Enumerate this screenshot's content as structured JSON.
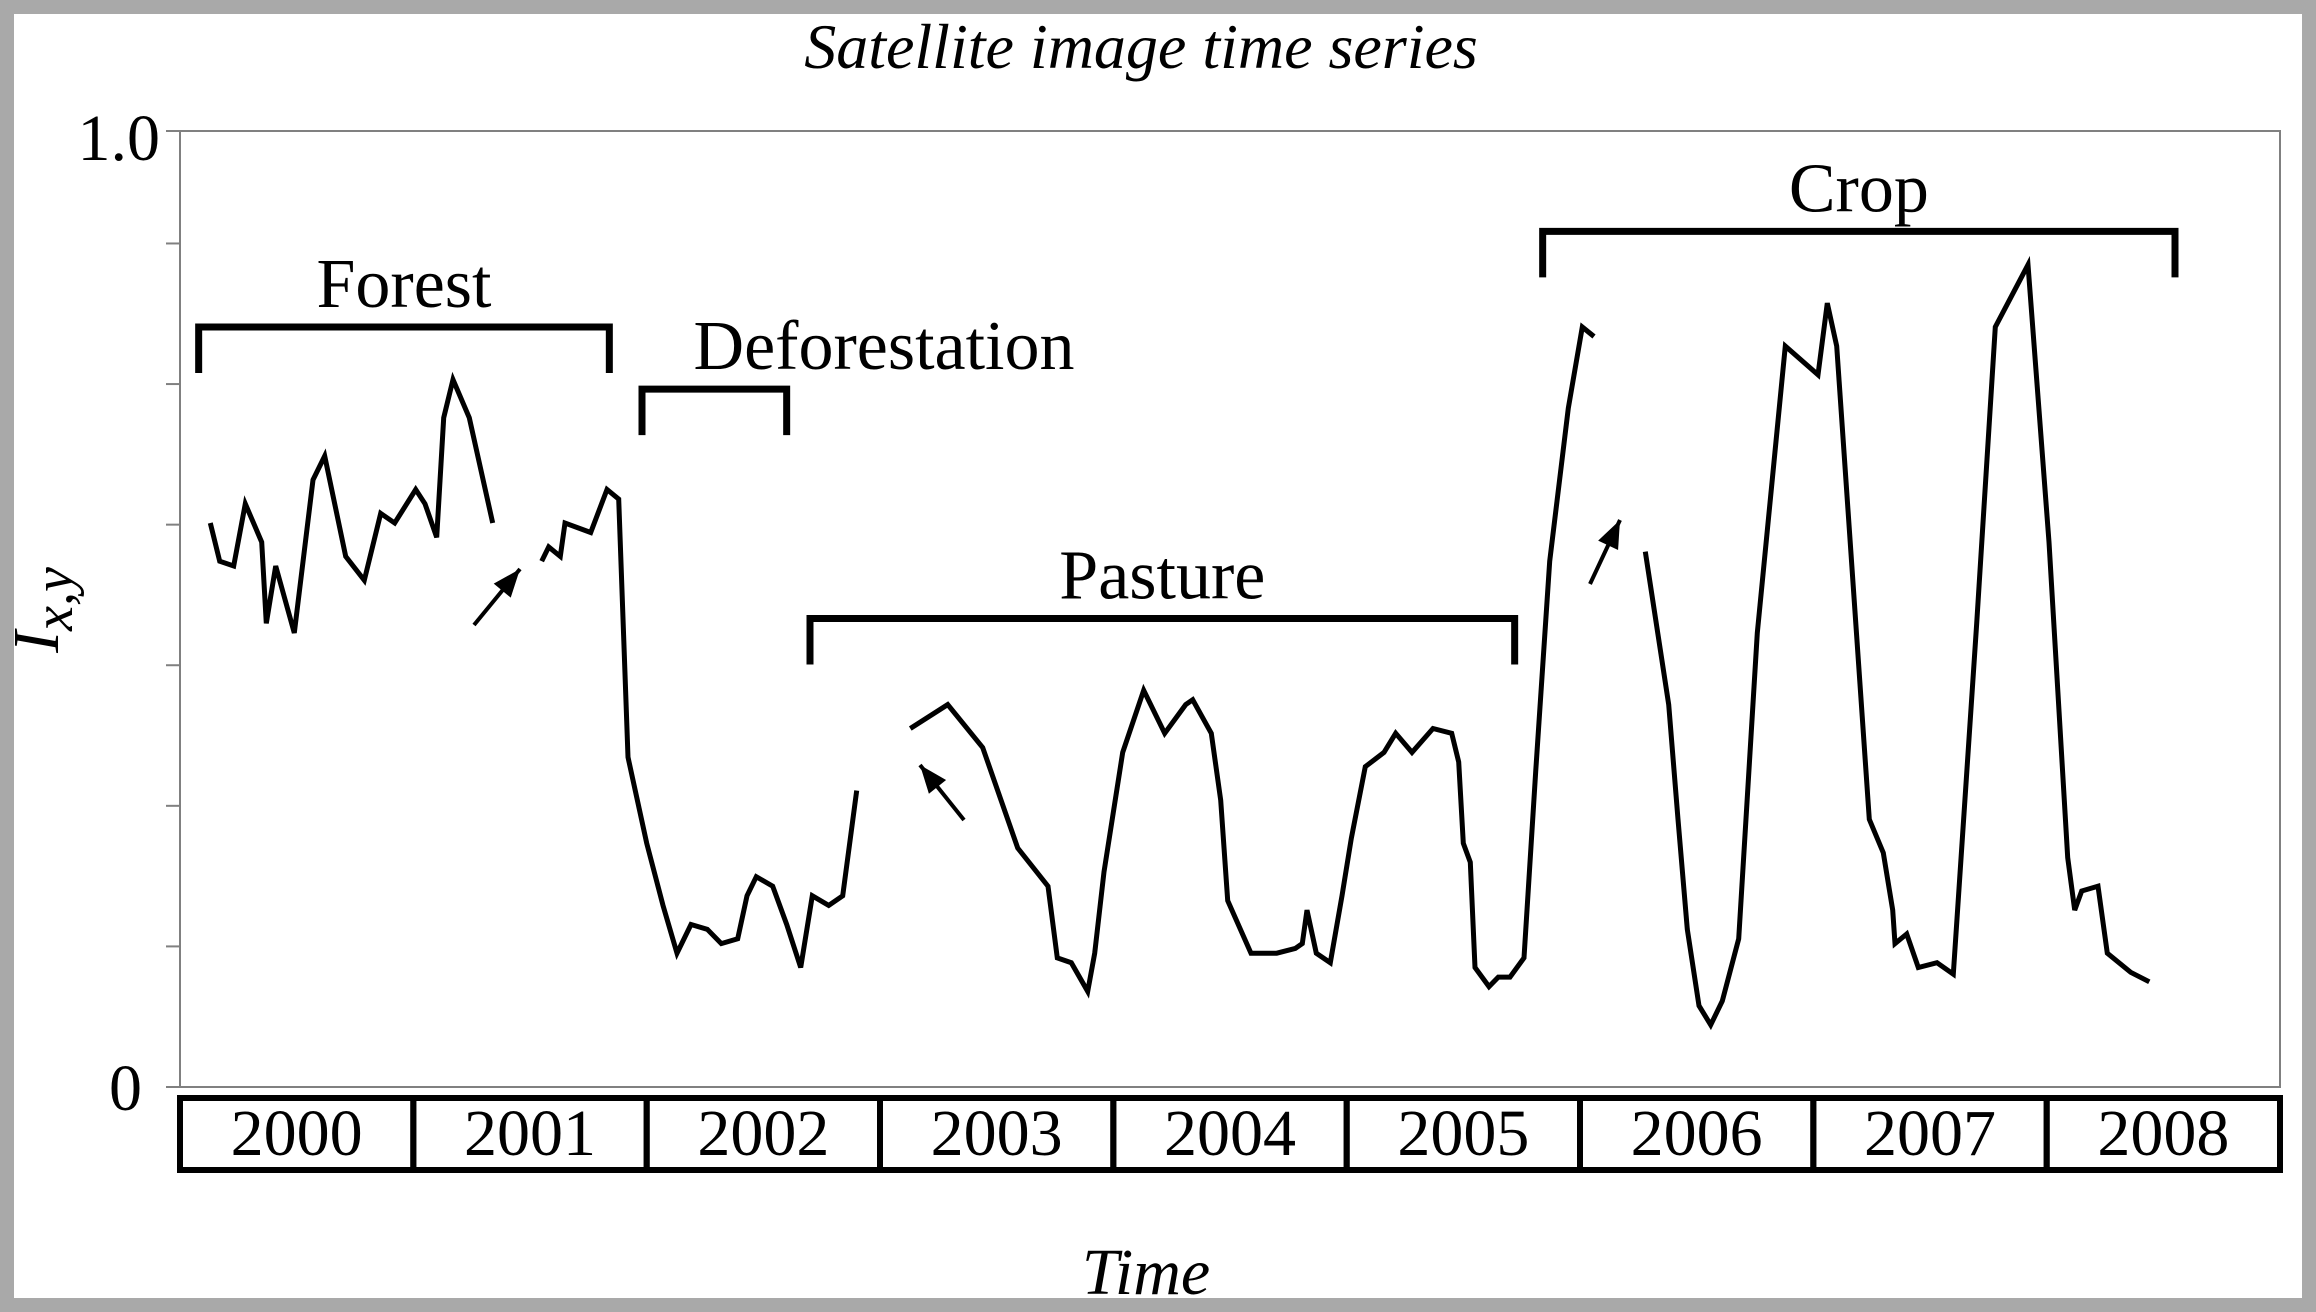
{
  "chart_data": {
    "type": "line",
    "title": "Satellite image time series",
    "xlabel": "Time",
    "ylabel": "I",
    "ylabel_subscript": "x,y",
    "ylim": [
      0,
      1.0
    ],
    "y_tick_labels": [
      "0",
      "1.0"
    ],
    "x_categories": [
      "2000",
      "2001",
      "2002",
      "2003",
      "2004",
      "2005",
      "2006",
      "2007",
      "2008"
    ],
    "xlim": [
      2000,
      2009
    ],
    "grid": false,
    "color": "#000000",
    "segments": [
      [
        [
          2000.13,
          0.59
        ],
        [
          2000.17,
          0.55
        ],
        [
          2000.23,
          0.545
        ],
        [
          2000.28,
          0.61
        ],
        [
          2000.35,
          0.57
        ],
        [
          2000.37,
          0.485
        ],
        [
          2000.41,
          0.545
        ],
        [
          2000.49,
          0.475
        ],
        [
          2000.57,
          0.635
        ],
        [
          2000.62,
          0.66
        ],
        [
          2000.71,
          0.555
        ],
        [
          2000.79,
          0.53
        ],
        [
          2000.86,
          0.6
        ],
        [
          2000.92,
          0.59
        ],
        [
          2001.01,
          0.625
        ],
        [
          2001.05,
          0.61
        ],
        [
          2001.1,
          0.575
        ],
        [
          2001.13,
          0.7
        ],
        [
          2001.17,
          0.74
        ],
        [
          2001.24,
          0.7
        ],
        [
          2001.34,
          0.59
        ]
      ],
      [
        [
          2001.55,
          0.55
        ],
        [
          2001.58,
          0.565
        ],
        [
          2001.63,
          0.555
        ],
        [
          2001.65,
          0.59
        ],
        [
          2001.76,
          0.58
        ],
        [
          2001.83,
          0.625
        ],
        [
          2001.88,
          0.615
        ],
        [
          2001.92,
          0.345
        ],
        [
          2002.0,
          0.255
        ],
        [
          2002.07,
          0.19
        ],
        [
          2002.13,
          0.14
        ],
        [
          2002.19,
          0.17
        ],
        [
          2002.26,
          0.165
        ],
        [
          2002.32,
          0.15
        ],
        [
          2002.39,
          0.155
        ],
        [
          2002.43,
          0.2
        ],
        [
          2002.47,
          0.22
        ],
        [
          2002.54,
          0.21
        ],
        [
          2002.6,
          0.17
        ],
        [
          2002.66,
          0.125
        ],
        [
          2002.71,
          0.2
        ],
        [
          2002.78,
          0.19
        ],
        [
          2002.84,
          0.2
        ],
        [
          2002.9,
          0.31
        ]
      ],
      [
        [
          2003.13,
          0.375
        ],
        [
          2003.29,
          0.4
        ],
        [
          2003.44,
          0.355
        ],
        [
          2003.59,
          0.25
        ],
        [
          2003.72,
          0.21
        ],
        [
          2003.76,
          0.135
        ],
        [
          2003.82,
          0.13
        ],
        [
          2003.89,
          0.1
        ],
        [
          2003.92,
          0.14
        ],
        [
          2003.96,
          0.225
        ],
        [
          2004.04,
          0.35
        ],
        [
          2004.13,
          0.415
        ],
        [
          2004.22,
          0.37
        ],
        [
          2004.31,
          0.4
        ],
        [
          2004.34,
          0.405
        ],
        [
          2004.42,
          0.37
        ],
        [
          2004.46,
          0.3
        ],
        [
          2004.49,
          0.195
        ],
        [
          2004.59,
          0.14
        ],
        [
          2004.7,
          0.14
        ],
        [
          2004.78,
          0.145
        ],
        [
          2004.81,
          0.15
        ],
        [
          2004.83,
          0.185
        ],
        [
          2004.87,
          0.14
        ],
        [
          2004.93,
          0.13
        ],
        [
          2004.98,
          0.2
        ],
        [
          2005.02,
          0.26
        ],
        [
          2005.08,
          0.335
        ],
        [
          2005.16,
          0.35
        ],
        [
          2005.21,
          0.37
        ],
        [
          2005.28,
          0.35
        ],
        [
          2005.37,
          0.375
        ],
        [
          2005.45,
          0.37
        ],
        [
          2005.48,
          0.34
        ],
        [
          2005.5,
          0.255
        ],
        [
          2005.53,
          0.235
        ],
        [
          2005.55,
          0.125
        ],
        [
          2005.61,
          0.105
        ],
        [
          2005.65,
          0.115
        ],
        [
          2005.7,
          0.115
        ],
        [
          2005.76,
          0.135
        ],
        [
          2005.81,
          0.33
        ],
        [
          2005.87,
          0.55
        ],
        [
          2005.95,
          0.71
        ],
        [
          2006.01,
          0.795
        ],
        [
          2006.06,
          0.785
        ]
      ]
    ],
    "segments_2": [
      [
        [
          2006.28,
          0.56
        ],
        [
          2006.38,
          0.4
        ],
        [
          2006.42,
          0.28
        ],
        [
          2006.46,
          0.165
        ],
        [
          2006.51,
          0.085
        ],
        [
          2006.56,
          0.065
        ],
        [
          2006.61,
          0.09
        ],
        [
          2006.68,
          0.155
        ],
        [
          2006.76,
          0.475
        ],
        [
          2006.88,
          0.775
        ],
        [
          2007.02,
          0.745
        ],
        [
          2007.06,
          0.82
        ],
        [
          2007.1,
          0.775
        ],
        [
          2007.24,
          0.28
        ],
        [
          2007.3,
          0.245
        ],
        [
          2007.34,
          0.185
        ],
        [
          2007.35,
          0.15
        ],
        [
          2007.4,
          0.16
        ],
        [
          2007.45,
          0.125
        ],
        [
          2007.53,
          0.13
        ],
        [
          2007.6,
          0.118
        ],
        [
          2007.7,
          0.485
        ],
        [
          2007.78,
          0.795
        ],
        [
          2007.92,
          0.86
        ],
        [
          2008.01,
          0.57
        ],
        [
          2008.09,
          0.24
        ],
        [
          2008.12,
          0.185
        ],
        [
          2008.15,
          0.205
        ],
        [
          2008.22,
          0.21
        ],
        [
          2008.26,
          0.14
        ],
        [
          2008.36,
          0.12
        ],
        [
          2008.44,
          0.11
        ]
      ]
    ],
    "annotations": [
      {
        "label": "Forest",
        "from": 2000.08,
        "to": 2001.84,
        "level": 0.795
      },
      {
        "label": "Deforestation",
        "from": 2001.98,
        "to": 2002.6,
        "level": 0.73
      },
      {
        "label": "Pasture",
        "from": 2002.7,
        "to": 2005.72,
        "level": 0.49
      },
      {
        "label": "Crop",
        "from": 2005.84,
        "to": 2008.55,
        "level": 0.895
      }
    ]
  }
}
